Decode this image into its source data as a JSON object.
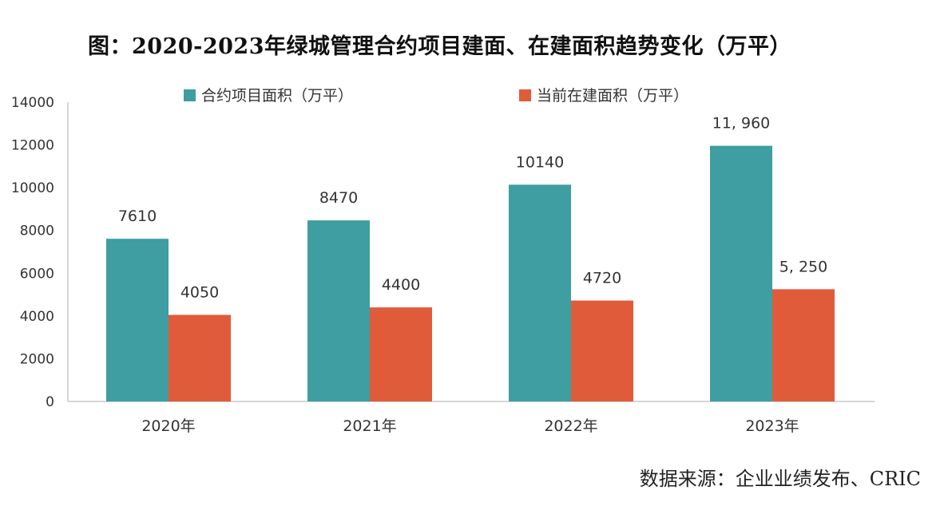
{
  "title": "图：2020-2023年绿城管理合约项目建面、在建面积趋势变化（万平）",
  "source": "数据来源：企业业绩发布、CRIC",
  "colors": {
    "series_a": "#3E9EA1",
    "series_b": "#E05B3A",
    "axis": "#C8C8C8",
    "text": "#333333"
  },
  "chart_data": {
    "type": "bar",
    "title": "图：2020-2023年绿城管理合约项目建面、在建面积趋势变化（万平）",
    "categories": [
      "2020年",
      "2021年",
      "2022年",
      "2023年"
    ],
    "series": [
      {
        "name": "合约项目面积（万平）",
        "values": [
          7610,
          8470,
          10140,
          11960
        ],
        "labels": [
          "7610",
          "8470",
          "10140",
          "11, 960"
        ]
      },
      {
        "name": "当前在建面积（万平）",
        "values": [
          4050,
          4400,
          4720,
          5250
        ],
        "labels": [
          "4050",
          "4400",
          "4720",
          "5, 250"
        ]
      }
    ],
    "ylim": [
      0,
      14000
    ],
    "yticks": [
      0,
      2000,
      4000,
      6000,
      8000,
      10000,
      12000,
      14000
    ],
    "xlabel": "",
    "ylabel": "",
    "grid": false,
    "legend": "top-center"
  }
}
